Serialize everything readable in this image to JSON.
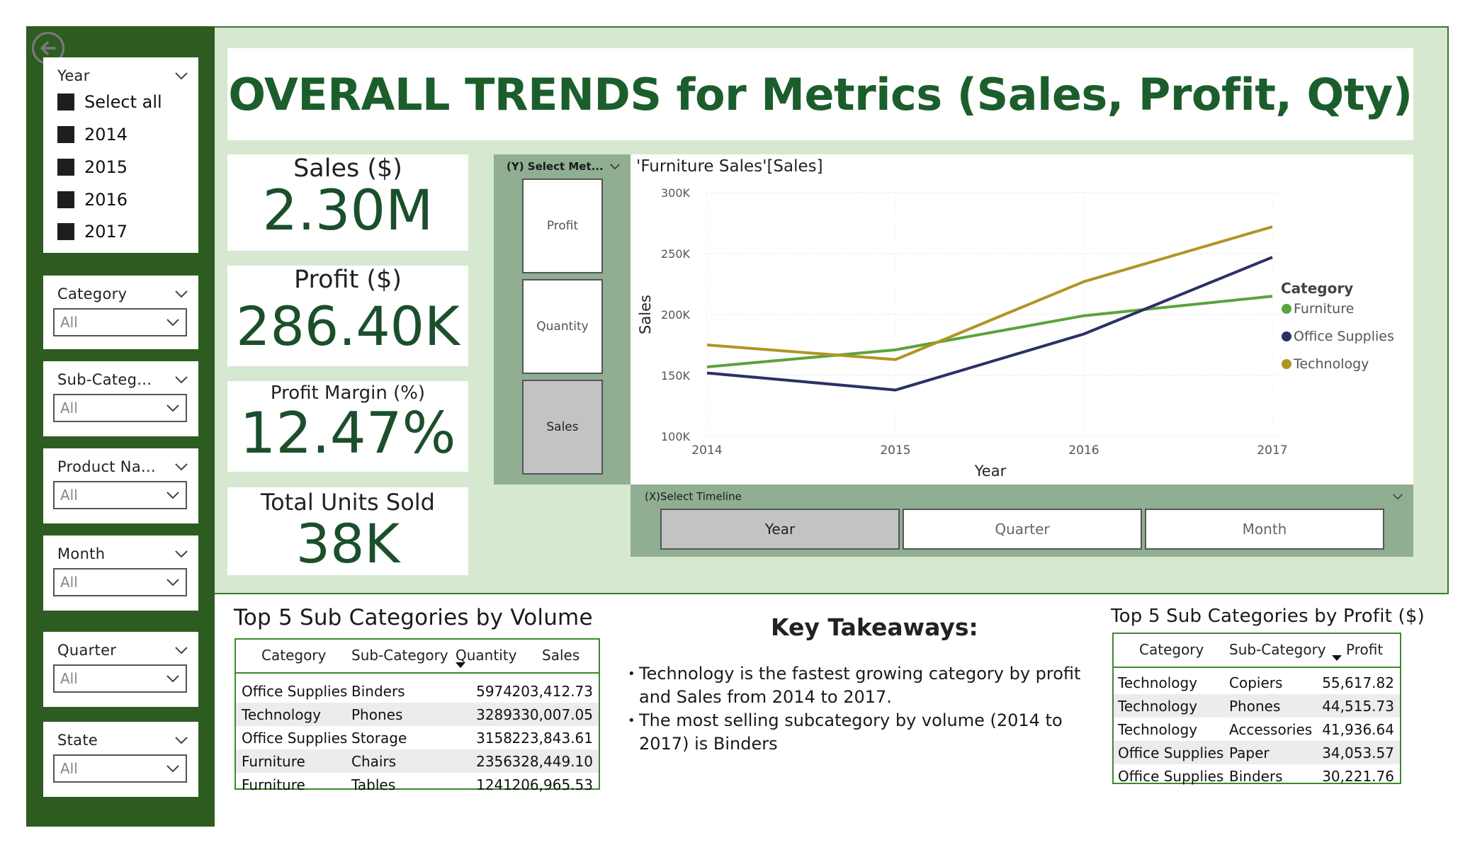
{
  "title": "OVERALL TRENDS for Metrics (Sales, Profit, Qty)",
  "colors": {
    "sidebar": "#2d5c21",
    "panel_bg": "#d6e8cf",
    "title": "#1b5e2c",
    "selector_bg": "#8fae92",
    "furniture": "#5aa33d",
    "office_supplies": "#2b3066",
    "technology": "#b09523"
  },
  "filters": {
    "year": {
      "title": "Year",
      "options": [
        "Select all",
        "2014",
        "2015",
        "2016",
        "2017"
      ]
    },
    "category": {
      "title": "Category",
      "value": "All"
    },
    "subcategory": {
      "title": "Sub-Categ...",
      "value": "All"
    },
    "product": {
      "title": "Product Na...",
      "value": "All"
    },
    "month": {
      "title": "Month",
      "value": "All"
    },
    "quarter": {
      "title": "Quarter",
      "value": "All"
    },
    "state": {
      "title": "State",
      "value": "All"
    }
  },
  "kpis": {
    "sales": {
      "label": "Sales ($)",
      "value": "2.30M"
    },
    "profit": {
      "label": "Profit ($)",
      "value": "286.40K"
    },
    "margin": {
      "label": "Profit Margin (%)",
      "value": "12.47%"
    },
    "units": {
      "label": "Total Units Sold",
      "value": "38K"
    }
  },
  "metric_selector": {
    "title": "(Y) Select Met...",
    "options": [
      "Profit",
      "Quantity",
      "Sales"
    ],
    "selected": "Sales"
  },
  "timeline_selector": {
    "title": "(X)Select Timeline",
    "options": [
      "Year",
      "Quarter",
      "Month"
    ],
    "selected": "Year"
  },
  "chart_data": {
    "type": "line",
    "title": "'Furniture Sales'[Sales]",
    "xlabel": "Year",
    "ylabel": "Sales",
    "x": [
      "2014",
      "2015",
      "2016",
      "2017"
    ],
    "ylim": [
      100000,
      300000
    ],
    "yticks": [
      "100K",
      "150K",
      "200K",
      "250K",
      "300K"
    ],
    "yticks_values": [
      100000,
      150000,
      200000,
      250000,
      300000
    ],
    "legend_title": "Category",
    "legend_position": "right",
    "series": [
      {
        "name": "Furniture",
        "color": "#5aa33d",
        "values": [
          157000,
          171000,
          199000,
          215000
        ]
      },
      {
        "name": "Office Supplies",
        "color": "#2b3066",
        "values": [
          152000,
          138000,
          184000,
          247000
        ]
      },
      {
        "name": "Technology",
        "color": "#b09523",
        "values": [
          175000,
          163000,
          227000,
          272000
        ]
      }
    ]
  },
  "volume_table": {
    "title": "Top 5 Sub Categories by Volume",
    "headers": [
      "Category",
      "Sub-Category",
      "Quantity",
      "Sales"
    ],
    "rows": [
      [
        "Office Supplies",
        "Binders",
        "5974",
        "203,412.73"
      ],
      [
        "Technology",
        "Phones",
        "3289",
        "330,007.05"
      ],
      [
        "Office Supplies",
        "Storage",
        "3158",
        "223,843.61"
      ],
      [
        "Furniture",
        "Chairs",
        "2356",
        "328,449.10"
      ],
      [
        "Furniture",
        "Tables",
        "1241",
        "206,965.53"
      ]
    ]
  },
  "profit_table": {
    "title": "Top 5 Sub Categories by Profit ($)",
    "headers": [
      "Category",
      "Sub-Category",
      "Profit"
    ],
    "rows": [
      [
        "Technology",
        "Copiers",
        "55,617.82"
      ],
      [
        "Technology",
        "Phones",
        "44,515.73"
      ],
      [
        "Technology",
        "Accessories",
        "41,936.64"
      ],
      [
        "Office Supplies",
        "Paper",
        "34,053.57"
      ],
      [
        "Office Supplies",
        "Binders",
        "30,221.76"
      ]
    ]
  },
  "takeaways": {
    "title": "Key Takeaways:",
    "points": [
      "Technology is the fastest growing category by profit and Sales from 2014 to 2017.",
      "The most selling subcategory by volume (2014 to 2017) is Binders"
    ]
  }
}
